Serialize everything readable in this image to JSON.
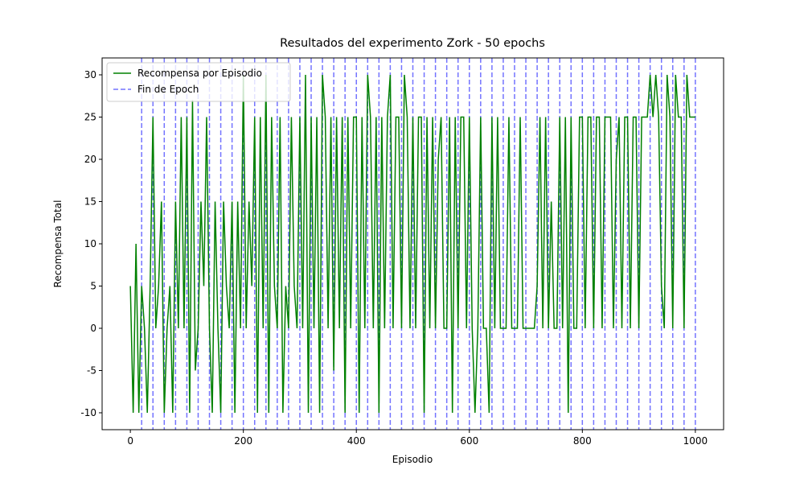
{
  "chart_data": {
    "type": "line",
    "title": "Resultados del experimento Zork - 50 epochs",
    "x_label": "Episodio",
    "y_label": "Recompensa Total",
    "xlim": [
      -50,
      1050
    ],
    "ylim": [
      -12,
      32
    ],
    "xticks": [
      0,
      200,
      400,
      600,
      800,
      1000
    ],
    "yticks": [
      -10,
      -5,
      0,
      5,
      10,
      15,
      20,
      25,
      30
    ],
    "grid": false,
    "legend": "upper left",
    "x": [
      0,
      5,
      10,
      15,
      20,
      25,
      30,
      35,
      40,
      45,
      50,
      55,
      60,
      65,
      70,
      75,
      80,
      85,
      90,
      95,
      100,
      105,
      110,
      115,
      120,
      125,
      130,
      135,
      140,
      145,
      150,
      155,
      160,
      165,
      170,
      175,
      180,
      185,
      190,
      195,
      200,
      205,
      210,
      215,
      220,
      225,
      230,
      235,
      240,
      245,
      250,
      255,
      260,
      265,
      270,
      275,
      280,
      285,
      290,
      295,
      300,
      305,
      310,
      315,
      320,
      325,
      330,
      335,
      340,
      345,
      350,
      355,
      360,
      365,
      370,
      375,
      380,
      385,
      390,
      395,
      400,
      405,
      410,
      415,
      420,
      425,
      430,
      435,
      440,
      445,
      450,
      455,
      460,
      465,
      470,
      475,
      480,
      485,
      490,
      495,
      500,
      505,
      510,
      515,
      520,
      525,
      530,
      535,
      540,
      545,
      550,
      555,
      560,
      565,
      570,
      575,
      580,
      585,
      590,
      595,
      600,
      605,
      610,
      615,
      620,
      625,
      630,
      635,
      640,
      645,
      650,
      655,
      660,
      665,
      670,
      675,
      680,
      685,
      690,
      695,
      700,
      705,
      710,
      715,
      720,
      725,
      730,
      735,
      740,
      745,
      750,
      755,
      760,
      765,
      770,
      775,
      780,
      785,
      790,
      795,
      800,
      805,
      810,
      815,
      820,
      825,
      830,
      835,
      840,
      845,
      850,
      855,
      860,
      865,
      870,
      875,
      880,
      885,
      890,
      895,
      900,
      905,
      910,
      915,
      920,
      925,
      930,
      935,
      940,
      945,
      950,
      955,
      960,
      965,
      970,
      975,
      980,
      985,
      990,
      995,
      1000
    ],
    "series": [
      {
        "name": "Recompensa por Episodio",
        "color": "#008000",
        "values": [
          5,
          -10,
          10,
          -10,
          5,
          0,
          -10,
          5,
          25,
          0,
          5,
          15,
          -10,
          0,
          5,
          -10,
          15,
          0,
          25,
          0,
          25,
          -10,
          27,
          -5,
          0,
          15,
          5,
          25,
          0,
          -10,
          15,
          0,
          -10,
          15,
          5,
          0,
          15,
          -10,
          15,
          0,
          30,
          0,
          15,
          5,
          25,
          -10,
          25,
          0,
          30,
          -10,
          25,
          5,
          0,
          25,
          -10,
          5,
          0,
          25,
          5,
          0,
          25,
          0,
          30,
          -10,
          25,
          0,
          25,
          -10,
          30,
          25,
          0,
          25,
          -5,
          25,
          0,
          25,
          -10,
          25,
          0,
          25,
          25,
          -10,
          25,
          0,
          30,
          25,
          0,
          25,
          -10,
          25,
          0,
          25,
          30,
          0,
          25,
          25,
          0,
          30,
          25,
          0,
          25,
          0,
          25,
          25,
          -10,
          25,
          0,
          25,
          0,
          20,
          25,
          0,
          0,
          25,
          -10,
          25,
          0,
          25,
          25,
          0,
          25,
          0,
          -10,
          0,
          25,
          0,
          0,
          -10,
          25,
          0,
          25,
          0,
          0,
          0,
          25,
          0,
          0,
          0,
          25,
          0,
          0,
          0,
          0,
          0,
          5,
          25,
          0,
          25,
          0,
          15,
          0,
          0,
          25,
          0,
          25,
          -10,
          25,
          0,
          0,
          25,
          25,
          0,
          25,
          25,
          0,
          25,
          25,
          0,
          25,
          25,
          25,
          0,
          20,
          25,
          0,
          25,
          25,
          0,
          25,
          25,
          0,
          25,
          25,
          25,
          30,
          25,
          30,
          25,
          5,
          0,
          30,
          25,
          0,
          30,
          25,
          25,
          0,
          30,
          25,
          25,
          25
        ]
      }
    ],
    "vlines": {
      "name": "Fin de Epoch",
      "color": "#0000ff",
      "x": [
        20,
        40,
        60,
        80,
        100,
        120,
        140,
        160,
        180,
        200,
        220,
        240,
        260,
        280,
        300,
        320,
        340,
        360,
        380,
        400,
        420,
        440,
        460,
        480,
        500,
        520,
        540,
        560,
        580,
        600,
        620,
        640,
        660,
        680,
        700,
        720,
        740,
        760,
        780,
        800,
        820,
        840,
        860,
        880,
        900,
        920,
        940,
        960,
        980,
        1000
      ]
    }
  }
}
